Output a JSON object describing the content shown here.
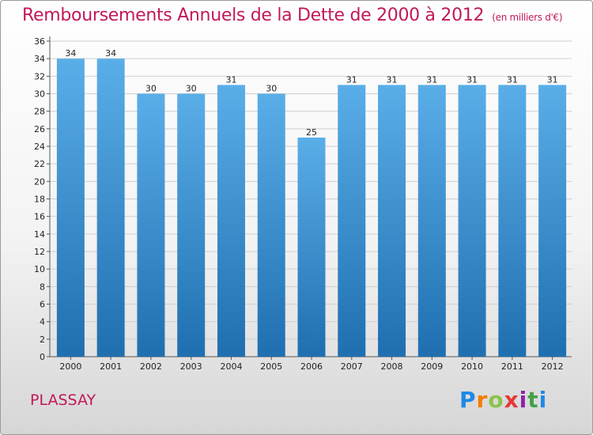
{
  "title": "Remboursements Annuels de la Dette de 2000 à 2012",
  "subtitle": "(en milliers d'€)",
  "place": "PLASSAY",
  "logo": {
    "letters": [
      "P",
      "r",
      "o",
      "x",
      "i",
      "t",
      "i"
    ],
    "colors": [
      "#1e88e5",
      "#f57c00",
      "#8bc34a",
      "#e53935",
      "#8e24aa",
      "#43a047",
      "#1e88e5"
    ]
  },
  "colors": {
    "title": "#c2185b",
    "bar_top": "#5aaee8",
    "bar_bottom": "#1f6fb0"
  },
  "chart_data": {
    "type": "bar",
    "categories": [
      "2000",
      "2001",
      "2002",
      "2003",
      "2004",
      "2005",
      "2006",
      "2007",
      "2008",
      "2009",
      "2010",
      "2011",
      "2012"
    ],
    "values": [
      34,
      34,
      30,
      30,
      31,
      30,
      25,
      31,
      31,
      31,
      31,
      31,
      31
    ],
    "ylim": [
      0,
      36
    ],
    "yticks": [
      0,
      2,
      4,
      6,
      8,
      10,
      12,
      14,
      16,
      18,
      20,
      22,
      24,
      26,
      28,
      30,
      32,
      34,
      36
    ],
    "grid": true,
    "data_labels": true
  }
}
